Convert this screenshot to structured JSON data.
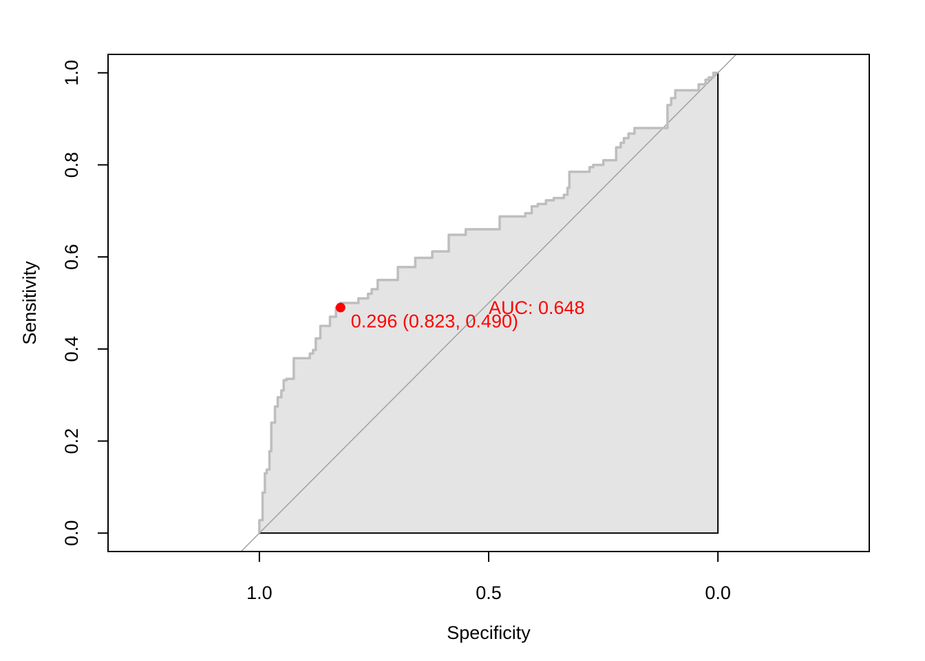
{
  "chart_data": {
    "type": "line",
    "xlabel": "Specificity",
    "ylabel": "Sensitivity",
    "x_reversed": true,
    "xlim": [
      1.33,
      -0.33
    ],
    "ylim": [
      -0.04,
      1.04
    ],
    "x_ticks": [
      1.0,
      0.5,
      0.0
    ],
    "x_tick_labels": [
      "1.0",
      "0.5",
      "0.0"
    ],
    "y_ticks": [
      0.0,
      0.2,
      0.4,
      0.6,
      0.8,
      1.0
    ],
    "y_tick_labels": [
      "0.0",
      "0.2",
      "0.4",
      "0.6",
      "0.8",
      "1.0"
    ],
    "grid": false,
    "auc_polygon_fill": "#e4e4e4",
    "curve_color": "#bebebe",
    "diagonal_color": "#a0a0a0",
    "annotation_color": "#ff0000",
    "series": [
      {
        "specificity": [
          1.0,
          1.0,
          0.993,
          0.993,
          0.988,
          0.988,
          0.984,
          0.984,
          0.978,
          0.978,
          0.974,
          0.974,
          0.966,
          0.966,
          0.96,
          0.96,
          0.952,
          0.952,
          0.947,
          0.947,
          0.941,
          0.941,
          0.937,
          0.937,
          0.925,
          0.925,
          0.89,
          0.89,
          0.883,
          0.883,
          0.877,
          0.877,
          0.867,
          0.867,
          0.846,
          0.846,
          0.833,
          0.833,
          0.823,
          0.823,
          0.784,
          0.784,
          0.763,
          0.763,
          0.755,
          0.755,
          0.742,
          0.742,
          0.698,
          0.698,
          0.66,
          0.66,
          0.623,
          0.623,
          0.587,
          0.587,
          0.55,
          0.55,
          0.476,
          0.476,
          0.42,
          0.42,
          0.406,
          0.406,
          0.393,
          0.393,
          0.375,
          0.375,
          0.358,
          0.358,
          0.336,
          0.336,
          0.328,
          0.328,
          0.324,
          0.324,
          0.318,
          0.318,
          0.28,
          0.28,
          0.272,
          0.272,
          0.25,
          0.25,
          0.222,
          0.222,
          0.212,
          0.212,
          0.205,
          0.205,
          0.195,
          0.195,
          0.182,
          0.182,
          0.11,
          0.11,
          0.102,
          0.102,
          0.093,
          0.093,
          0.042,
          0.042,
          0.027,
          0.027,
          0.02,
          0.02,
          0.01,
          0.01,
          0.0
        ],
        "sensitivity": [
          0.0,
          0.028,
          0.028,
          0.088,
          0.088,
          0.13,
          0.13,
          0.138,
          0.138,
          0.178,
          0.178,
          0.24,
          0.24,
          0.275,
          0.275,
          0.295,
          0.295,
          0.31,
          0.31,
          0.332,
          0.332,
          0.335,
          0.335,
          0.335,
          0.335,
          0.38,
          0.38,
          0.39,
          0.39,
          0.398,
          0.398,
          0.423,
          0.423,
          0.45,
          0.45,
          0.47,
          0.47,
          0.49,
          0.49,
          0.5,
          0.5,
          0.51,
          0.51,
          0.52,
          0.52,
          0.53,
          0.53,
          0.55,
          0.55,
          0.578,
          0.578,
          0.598,
          0.598,
          0.612,
          0.612,
          0.648,
          0.648,
          0.66,
          0.66,
          0.688,
          0.688,
          0.695,
          0.695,
          0.71,
          0.71,
          0.715,
          0.715,
          0.723,
          0.723,
          0.728,
          0.728,
          0.735,
          0.735,
          0.75,
          0.75,
          0.785,
          0.785,
          0.785,
          0.785,
          0.795,
          0.795,
          0.8,
          0.8,
          0.81,
          0.81,
          0.838,
          0.838,
          0.848,
          0.848,
          0.858,
          0.858,
          0.868,
          0.868,
          0.88,
          0.88,
          0.93,
          0.93,
          0.945,
          0.945,
          0.962,
          0.962,
          0.975,
          0.975,
          0.985,
          0.985,
          0.99,
          0.99,
          1.0,
          1.0
        ]
      }
    ],
    "best_threshold_point": {
      "specificity": 0.823,
      "sensitivity": 0.49
    },
    "annotations": {
      "threshold_label": "0.296 (0.823, 0.490)",
      "auc_label": "AUC: 0.648"
    }
  }
}
